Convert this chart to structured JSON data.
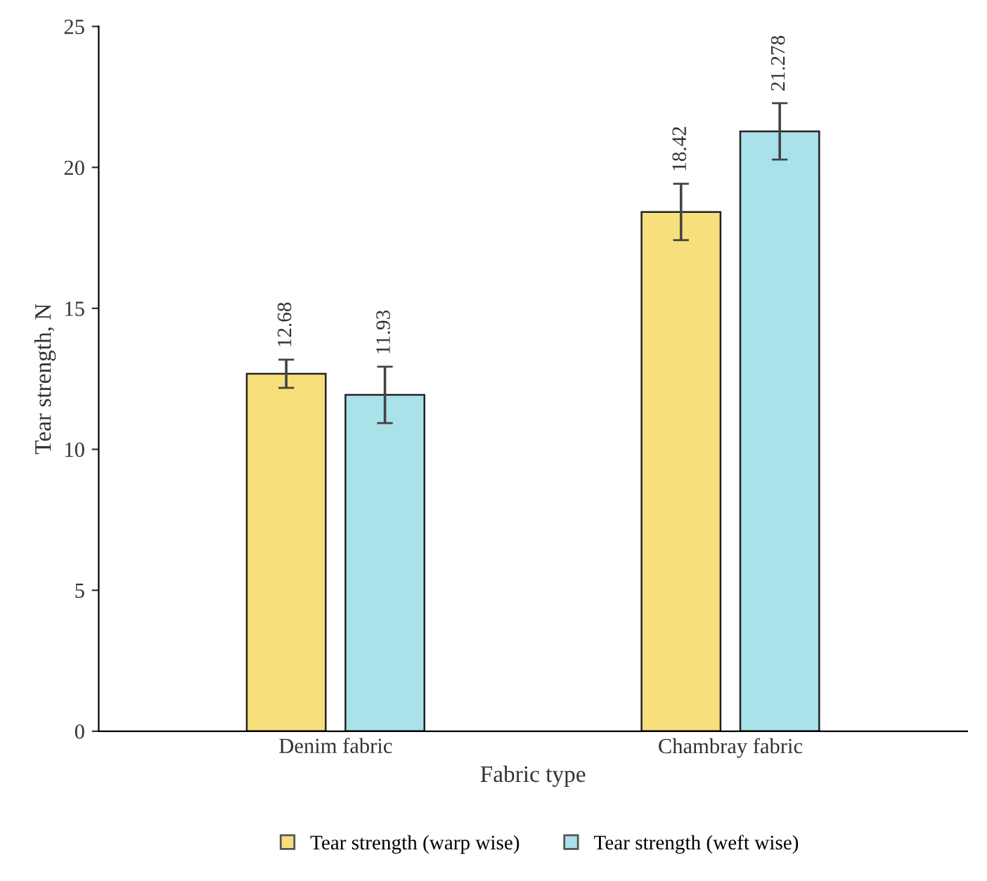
{
  "chart_data": {
    "type": "bar",
    "xlabel": "Fabric type",
    "ylabel": "Tear strength, N",
    "categories": [
      "Denim fabric",
      "Chambray fabric"
    ],
    "series": [
      {
        "name": "Tear strength (warp wise)",
        "color": "#f7df7c",
        "values": [
          12.68,
          18.42
        ],
        "errors": [
          0.5,
          1.0
        ],
        "value_labels": [
          "12.68",
          "18.42"
        ]
      },
      {
        "name": "Tear strength (weft wise)",
        "color": "#a9e2e8",
        "values": [
          11.93,
          21.278
        ],
        "errors": [
          1.0,
          1.0
        ],
        "value_labels": [
          "11.93",
          "21.278"
        ]
      }
    ],
    "ylim": [
      0,
      25
    ],
    "yticks": [
      0,
      5,
      10,
      15,
      20,
      25
    ],
    "grid": false,
    "legend": "bottom"
  }
}
